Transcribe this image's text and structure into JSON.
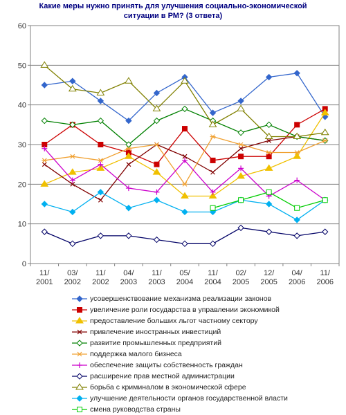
{
  "chart_data": {
    "type": "line",
    "title_lines": [
      "Какие меры нужно принять для улучшения социально-экономической",
      "ситуации в РМ? (3 ответа)"
    ],
    "categories": [
      [
        "11/",
        "2001"
      ],
      [
        "03/",
        "2002"
      ],
      [
        "11/",
        "2002"
      ],
      [
        "04/",
        "2003"
      ],
      [
        "11/",
        "2003"
      ],
      [
        "05/",
        "2004"
      ],
      [
        "11/",
        "2004"
      ],
      [
        "02/",
        "2005"
      ],
      [
        "12/",
        "2005"
      ],
      [
        "04/",
        "2006"
      ],
      [
        "11/",
        "2006"
      ]
    ],
    "ylim": [
      0,
      60
    ],
    "yticks": [
      0,
      10,
      20,
      30,
      40,
      50,
      60
    ],
    "grid": true,
    "legend_position": "bottom",
    "series": [
      {
        "name": "усовершенствование механизма реализации законов",
        "color": "#3366CC",
        "marker": "diamond",
        "fill": true,
        "values": [
          45,
          46,
          41,
          36,
          43,
          47,
          38,
          41,
          47,
          48,
          37
        ]
      },
      {
        "name": "увеличение роли государства в управлении экономикой",
        "color": "#CC0000",
        "marker": "square",
        "fill": true,
        "values": [
          30,
          35,
          30,
          28,
          25,
          34,
          26,
          27,
          27,
          35,
          39
        ]
      },
      {
        "name": "предоставление больших льгот частному сектору",
        "color": "#F0C000",
        "marker": "triangle",
        "fill": true,
        "values": [
          20,
          23,
          24,
          27,
          23,
          17,
          17,
          22,
          24,
          27,
          38
        ]
      },
      {
        "name": "привлечение иностранных инвестиций",
        "color": "#800000",
        "marker": "x",
        "fill": false,
        "values": [
          25,
          20,
          16,
          25,
          30,
          27,
          23,
          29,
          31,
          32,
          31
        ]
      },
      {
        "name": "развитие промышленных предприятий",
        "color": "#008000",
        "marker": "diamond",
        "fill": false,
        "values": [
          36,
          35,
          36,
          30,
          36,
          39,
          36,
          33,
          35,
          32,
          31
        ]
      },
      {
        "name": "поддержка малого бизнеса",
        "color": "#F0A030",
        "marker": "asterisk",
        "fill": false,
        "values": [
          26,
          27,
          26,
          29,
          30,
          20,
          32,
          30,
          28,
          28,
          31
        ]
      },
      {
        "name": "обеспечение защиты собственность граждан",
        "color": "#CC00CC",
        "marker": "plus",
        "fill": false,
        "values": [
          29,
          21,
          25,
          19,
          18,
          26,
          18,
          24,
          17,
          21,
          16
        ]
      },
      {
        "name": "расширение прав местной администрации",
        "color": "#000066",
        "marker": "diamond",
        "fill": false,
        "values": [
          8,
          5,
          7,
          7,
          6,
          5,
          5,
          9,
          8,
          7,
          8
        ]
      },
      {
        "name": "борьба с криминалом в экономической сфере",
        "color": "#808000",
        "marker": "triangle",
        "fill": false,
        "values": [
          50,
          44,
          43,
          46,
          39,
          46,
          35,
          39,
          32,
          32,
          33
        ]
      },
      {
        "name": "улучшение деятельности органов государственной власти",
        "color": "#00B0F0",
        "marker": "diamond",
        "fill": true,
        "values": [
          15,
          13,
          18,
          14,
          16,
          13,
          13,
          16,
          15,
          11,
          16
        ]
      },
      {
        "name": "смена руководства страны",
        "color": "#00CC00",
        "marker": "square",
        "fill": false,
        "values": [
          null,
          null,
          null,
          null,
          null,
          null,
          14,
          16,
          18,
          14,
          16
        ]
      }
    ]
  }
}
